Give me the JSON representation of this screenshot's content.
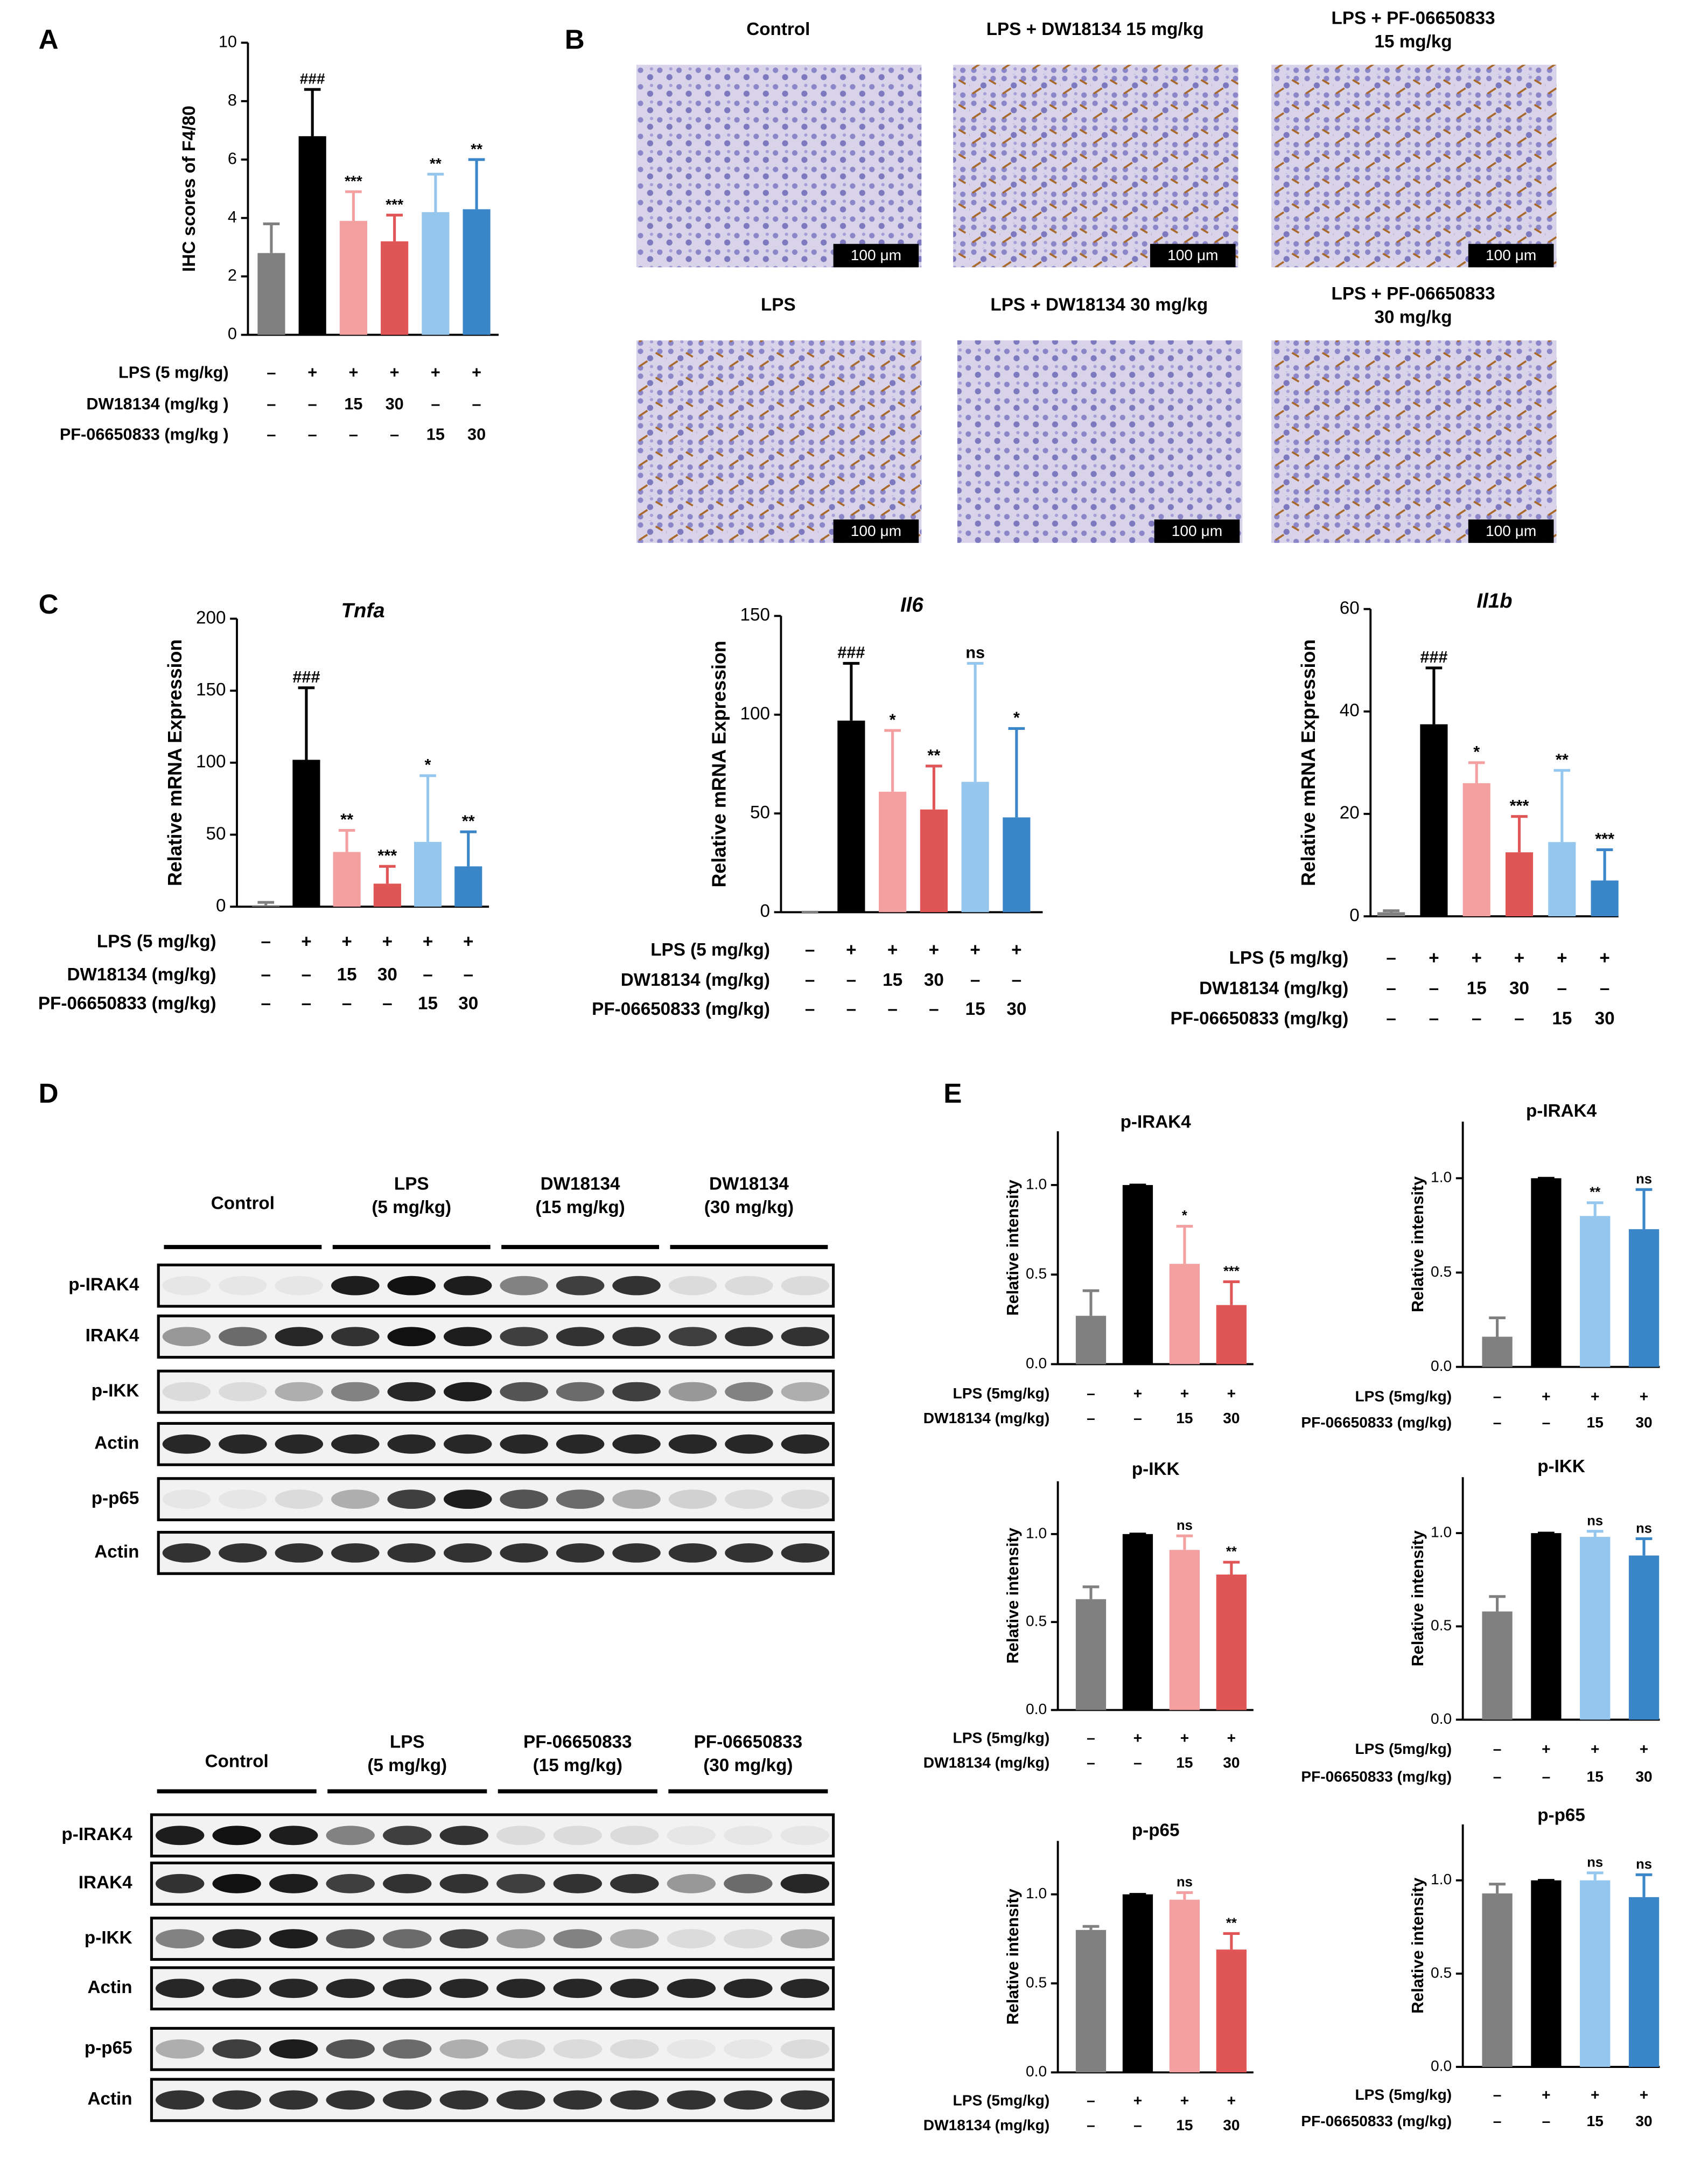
{
  "panel_labels": [
    "A",
    "B",
    "C",
    "D",
    "E"
  ],
  "micrographs": {
    "titles": [
      [
        "Control"
      ],
      [
        "LPS + DW18134 15 mg/kg"
      ],
      [
        "LPS + PF-06650833",
        "15 mg/kg"
      ],
      [
        "LPS"
      ],
      [
        "LPS + DW18134 30 mg/kg"
      ],
      [
        "LPS + PF-06650833",
        "30 mg/kg"
      ]
    ],
    "scale_bar": "100 μm"
  },
  "blots": [
    {
      "groups": [
        [
          "Control"
        ],
        [
          "LPS",
          "(5 mg/kg)"
        ],
        [
          "DW18134",
          "(15 mg/kg)"
        ],
        [
          "DW18134",
          "(30 mg/kg)"
        ]
      ],
      "rows": [
        "p-IRAK4",
        "IRAK4",
        "p-IKK",
        "Actin",
        "p-p65",
        "Actin"
      ]
    },
    {
      "groups": [
        [
          "Control"
        ],
        [
          "LPS",
          "(5 mg/kg)"
        ],
        [
          "PF-06650833",
          "(15 mg/kg)"
        ],
        [
          "PF-06650833",
          "(30 mg/kg)"
        ]
      ],
      "rows": [
        "p-IRAK4",
        "IRAK4",
        "p-IKK",
        "Actin",
        "p-p65",
        "Actin"
      ]
    }
  ],
  "chart_data": [
    {
      "type": "bar",
      "ylabel": "IHC scores of F4/80",
      "ylim": [
        0,
        10
      ],
      "yticks": [
        0,
        2,
        4,
        6,
        8,
        10
      ],
      "values": [
        2.8,
        6.8,
        3.9,
        3.2,
        4.2,
        4.3
      ],
      "errors": [
        1.0,
        1.6,
        1.0,
        0.9,
        1.3,
        1.7
      ],
      "colors": [
        "#808080",
        "#000000",
        "#f4a0a0",
        "#e05555",
        "#94c6ee",
        "#3a86c8"
      ],
      "annotations": [
        null,
        "###",
        "***",
        "***",
        "**",
        "**"
      ],
      "treatment": [
        {
          "label": "LPS (5 mg/kg)",
          "cells": [
            "–",
            "+",
            "+",
            "+",
            "+",
            "+"
          ]
        },
        {
          "label": "DW18134 (mg/kg )",
          "cells": [
            "–",
            "–",
            "15",
            "30",
            "–",
            "–"
          ]
        },
        {
          "label": "PF-06650833 (mg/kg )",
          "cells": [
            "–",
            "–",
            "–",
            "–",
            "15",
            "30"
          ]
        }
      ]
    },
    {
      "type": "bar",
      "title": "Tnfa",
      "ylabel": "Relative mRNA Expression",
      "ylim": [
        0,
        200
      ],
      "yticks": [
        0,
        50,
        100,
        150,
        200
      ],
      "values": [
        1,
        102,
        38,
        16,
        45,
        28
      ],
      "errors": [
        2,
        50,
        15,
        12,
        46,
        24
      ],
      "colors": [
        "#808080",
        "#000000",
        "#f4a0a0",
        "#e05555",
        "#94c6ee",
        "#3a86c8"
      ],
      "annotations": [
        null,
        "###",
        "**",
        "***",
        "*",
        "**"
      ],
      "treatment": [
        {
          "label": "LPS (5 mg/kg)",
          "cells": [
            "–",
            "+",
            "+",
            "+",
            "+",
            "+"
          ]
        },
        {
          "label": "DW18134 (mg/kg)",
          "cells": [
            "–",
            "–",
            "15",
            "30",
            "–",
            "–"
          ]
        },
        {
          "label": "PF-06650833 (mg/kg)",
          "cells": [
            "–",
            "–",
            "–",
            "–",
            "15",
            "30"
          ]
        }
      ]
    },
    {
      "type": "bar",
      "title": "Il6",
      "ylabel": "Relative mRNA Expression",
      "ylim": [
        0,
        150
      ],
      "yticks": [
        0,
        50,
        100,
        150
      ],
      "values": [
        0,
        97,
        61,
        52,
        66,
        48
      ],
      "errors": [
        0,
        29,
        31,
        22,
        60,
        45
      ],
      "colors": [
        "#808080",
        "#000000",
        "#f4a0a0",
        "#e05555",
        "#94c6ee",
        "#3a86c8"
      ],
      "annotations": [
        null,
        "###",
        "*",
        "**",
        "ns",
        "*"
      ],
      "treatment": [
        {
          "label": "LPS (5 mg/kg)",
          "cells": [
            "–",
            "+",
            "+",
            "+",
            "+",
            "+"
          ]
        },
        {
          "label": "DW18134 (mg/kg)",
          "cells": [
            "–",
            "–",
            "15",
            "30",
            "–",
            "–"
          ]
        },
        {
          "label": "PF-06650833 (mg/kg)",
          "cells": [
            "–",
            "–",
            "–",
            "–",
            "15",
            "30"
          ]
        }
      ]
    },
    {
      "type": "bar",
      "title": "Il1b",
      "ylabel": "Relative mRNA Expression",
      "ylim": [
        0,
        60
      ],
      "yticks": [
        0,
        20,
        40,
        60
      ],
      "values": [
        0.8,
        37.5,
        26,
        12.5,
        14.5,
        7
      ],
      "errors": [
        0.3,
        11,
        4,
        7,
        14,
        6
      ],
      "colors": [
        "#808080",
        "#000000",
        "#f4a0a0",
        "#e05555",
        "#94c6ee",
        "#3a86c8"
      ],
      "annotations": [
        null,
        "###",
        "*",
        "***",
        "**",
        "***"
      ],
      "treatment": [
        {
          "label": "LPS (5 mg/kg)",
          "cells": [
            "–",
            "+",
            "+",
            "+",
            "+",
            "+"
          ]
        },
        {
          "label": "DW18134 (mg/kg)",
          "cells": [
            "–",
            "–",
            "15",
            "30",
            "–",
            "–"
          ]
        },
        {
          "label": "PF-06650833 (mg/kg)",
          "cells": [
            "–",
            "–",
            "–",
            "–",
            "15",
            "30"
          ]
        }
      ]
    },
    {
      "type": "bar",
      "title": "p-IRAK4",
      "ylabel": "Relative intensity",
      "ylim": [
        0,
        1.3
      ],
      "yticks": [
        {
          "value": 0,
          "label": "0.0"
        },
        0.5,
        {
          "value": 1,
          "label": "1.0"
        }
      ],
      "values": [
        0.27,
        1.0,
        0.56,
        0.33
      ],
      "errors": [
        0.14,
        0,
        0.21,
        0.13
      ],
      "colors": [
        "#808080",
        "#000000",
        "#f4a0a0",
        "#e05555"
      ],
      "annotations": [
        null,
        null,
        "*",
        "***"
      ],
      "treatment": [
        {
          "label": "LPS (5mg/kg)",
          "cells": [
            "–",
            "+",
            "+",
            "+"
          ]
        },
        {
          "label": "DW18134 (mg/kg)",
          "cells": [
            "–",
            "–",
            "15",
            "30"
          ]
        }
      ]
    },
    {
      "type": "bar",
      "title": "p-IRAK4",
      "ylabel": "Relative intensity",
      "ylim": [
        0,
        1.3
      ],
      "yticks": [
        {
          "value": 0,
          "label": "0.0"
        },
        0.5,
        {
          "value": 1,
          "label": "1.0"
        }
      ],
      "values": [
        0.16,
        1.0,
        0.8,
        0.73
      ],
      "errors": [
        0.1,
        0,
        0.07,
        0.21
      ],
      "colors": [
        "#808080",
        "#000000",
        "#94c6ee",
        "#3a86c8"
      ],
      "annotations": [
        null,
        null,
        "**",
        "ns"
      ],
      "treatment": [
        {
          "label": "LPS (5mg/kg)",
          "cells": [
            "–",
            "+",
            "+",
            "+"
          ]
        },
        {
          "label": "PF-06650833 (mg/kg)",
          "cells": [
            "–",
            "–",
            "15",
            "30"
          ]
        }
      ]
    },
    {
      "type": "bar",
      "title": "p-IKK",
      "ylabel": "Relative intensity",
      "ylim": [
        0,
        1.3
      ],
      "yticks": [
        {
          "value": 0,
          "label": "0.0"
        },
        0.5,
        {
          "value": 1,
          "label": "1.0"
        }
      ],
      "values": [
        0.63,
        1.0,
        0.91,
        0.77
      ],
      "errors": [
        0.07,
        0,
        0.08,
        0.07
      ],
      "colors": [
        "#808080",
        "#000000",
        "#f4a0a0",
        "#e05555"
      ],
      "annotations": [
        null,
        null,
        "ns",
        "**"
      ],
      "treatment": [
        {
          "label": "LPS (5mg/kg)",
          "cells": [
            "–",
            "+",
            "+",
            "+"
          ]
        },
        {
          "label": "DW18134 (mg/kg)",
          "cells": [
            "–",
            "–",
            "15",
            "30"
          ]
        }
      ]
    },
    {
      "type": "bar",
      "title": "p-IKK",
      "ylabel": "Relative intensity",
      "ylim": [
        0,
        1.3
      ],
      "yticks": [
        {
          "value": 0,
          "label": "0.0"
        },
        0.5,
        {
          "value": 1,
          "label": "1.0"
        }
      ],
      "values": [
        0.58,
        1.0,
        0.98,
        0.88
      ],
      "errors": [
        0.08,
        0,
        0.03,
        0.09
      ],
      "colors": [
        "#808080",
        "#000000",
        "#94c6ee",
        "#3a86c8"
      ],
      "annotations": [
        null,
        null,
        "ns",
        "ns"
      ],
      "treatment": [
        {
          "label": "LPS (5mg/kg)",
          "cells": [
            "–",
            "+",
            "+",
            "+"
          ]
        },
        {
          "label": "PF-06650833 (mg/kg)",
          "cells": [
            "–",
            "–",
            "15",
            "30"
          ]
        }
      ]
    },
    {
      "type": "bar",
      "title": "p-p65",
      "ylabel": "Relative intensity",
      "ylim": [
        0,
        1.3
      ],
      "yticks": [
        {
          "value": 0,
          "label": "0.0"
        },
        0.5,
        {
          "value": 1,
          "label": "1.0"
        }
      ],
      "values": [
        0.8,
        1.0,
        0.97,
        0.69
      ],
      "errors": [
        0.02,
        0,
        0.04,
        0.09
      ],
      "colors": [
        "#808080",
        "#000000",
        "#f4a0a0",
        "#e05555"
      ],
      "annotations": [
        null,
        null,
        "ns",
        "**"
      ],
      "treatment": [
        {
          "label": "LPS (5mg/kg)",
          "cells": [
            "–",
            "+",
            "+",
            "+"
          ]
        },
        {
          "label": "DW18134 (mg/kg)",
          "cells": [
            "–",
            "–",
            "15",
            "30"
          ]
        }
      ]
    },
    {
      "type": "bar",
      "title": "p-p65",
      "ylabel": "Relative intensity",
      "ylim": [
        0,
        1.3
      ],
      "yticks": [
        {
          "value": 0,
          "label": "0.0"
        },
        0.5,
        {
          "value": 1,
          "label": "1.0"
        }
      ],
      "values": [
        0.93,
        1.0,
        1.0,
        0.91
      ],
      "errors": [
        0.05,
        0,
        0.04,
        0.12
      ],
      "colors": [
        "#808080",
        "#000000",
        "#94c6ee",
        "#3a86c8"
      ],
      "annotations": [
        null,
        null,
        "ns",
        "ns"
      ],
      "treatment": [
        {
          "label": "LPS (5mg/kg)",
          "cells": [
            "–",
            "+",
            "+",
            "+"
          ]
        },
        {
          "label": "PF-06650833 (mg/kg)",
          "cells": [
            "–",
            "–",
            "15",
            "30"
          ]
        }
      ]
    }
  ]
}
